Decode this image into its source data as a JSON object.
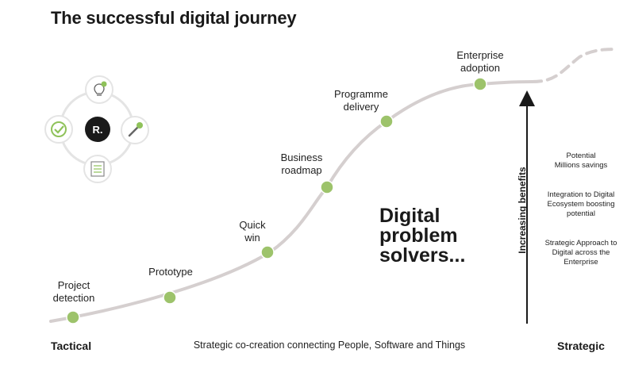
{
  "title": "The successful digital journey",
  "cycle": {
    "center_label": "R.",
    "icons": [
      "lightbulb-icon",
      "wrench-icon",
      "checklist-icon",
      "checkmark-icon"
    ]
  },
  "stages": [
    {
      "label_lines": [
        "Project",
        "detection"
      ]
    },
    {
      "label_lines": [
        "Prototype"
      ]
    },
    {
      "label_lines": [
        "Quick",
        "win"
      ]
    },
    {
      "label_lines": [
        "Business",
        "roadmap"
      ]
    },
    {
      "label_lines": [
        "Programme",
        "delivery"
      ]
    },
    {
      "label_lines": [
        "Enterprise",
        "adoption"
      ]
    }
  ],
  "headline_lines": [
    "Digital",
    "problem",
    "solvers..."
  ],
  "vertical_label": "Increasing benefits",
  "benefits": [
    {
      "lines": [
        "Potential",
        "Millions savings"
      ]
    },
    {
      "lines": [
        "Integration to Digital",
        "Ecosystem boosting",
        "potential"
      ]
    },
    {
      "lines": [
        "Strategic Approach to",
        "Digital across the",
        "Enterprise"
      ]
    }
  ],
  "axis": {
    "left": "Tactical",
    "middle": "Strategic co-creation connecting People, Software and Things",
    "right": "Strategic"
  },
  "colors": {
    "curve": "#d5cfcf",
    "node": "#9dc36b",
    "node_stroke": "#ffffff",
    "arrow": "#1a1a1a",
    "center_circle": "#1a1a1a",
    "icon_green": "#8fc25a",
    "ring": "#e4e4e4"
  }
}
